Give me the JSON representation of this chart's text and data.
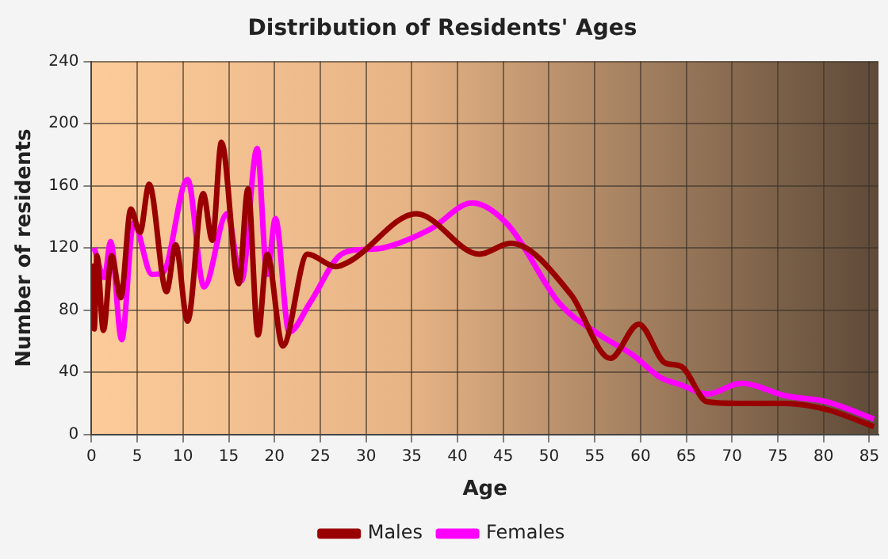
{
  "chart_data": {
    "type": "line",
    "title": "Distribution of Residents' Ages",
    "xlabel": "Age",
    "ylabel": "Number of residents",
    "xlim": [
      0,
      86
    ],
    "xticks": [
      0,
      5,
      10,
      15,
      20,
      25,
      30,
      35,
      40,
      45,
      50,
      55,
      60,
      65,
      70,
      75,
      80,
      85
    ],
    "ylim": [
      0,
      240
    ],
    "yticks": [
      0,
      40,
      80,
      120,
      160,
      200,
      240
    ],
    "grid": true,
    "legend": "bottom",
    "marker": "none",
    "line_style": "solid",
    "series": [
      {
        "name": "Males",
        "color": "#990000",
        "x": [
          0,
          0.3,
          0.6,
          1.3,
          2.2,
          3.2,
          4.3,
          5.3,
          6.3,
          8.2,
          9.2,
          10.5,
          12.2,
          13.2,
          14.2,
          16.1,
          17.1,
          18.2,
          19.2,
          20.9,
          23.6,
          26.7,
          28.4,
          35.5,
          42.4,
          45.8,
          52.4,
          56.7,
          59.8,
          62.7,
          64.4,
          67.3,
          70.7,
          75.8,
          80.4,
          85.5
        ],
        "values": [
          110,
          68,
          115,
          67,
          115,
          88,
          145,
          130,
          161,
          92,
          122,
          73,
          155,
          125,
          188,
          97,
          158,
          64,
          116,
          57,
          116,
          108,
          112,
          142,
          116,
          123,
          90,
          49,
          71,
          46,
          44,
          21,
          20,
          20,
          16,
          5
        ]
      },
      {
        "name": "Females",
        "color": "#ff00ff",
        "x": [
          0.3,
          1.4,
          2.1,
          3.3,
          4.6,
          6.6,
          7.8,
          10.5,
          12.3,
          14.8,
          16.4,
          18.1,
          19.2,
          20.1,
          21.6,
          23.9,
          27.3,
          29.6,
          31.8,
          37,
          41.6,
          45.5,
          51.2,
          55.3,
          59.2,
          62.1,
          64.4,
          67.3,
          71,
          75.8,
          80.4,
          85.5
        ],
        "values": [
          120,
          101,
          124,
          61,
          136,
          103,
          104,
          164,
          95,
          142,
          99,
          184,
          103,
          139,
          66,
          85,
          116,
          119,
          120,
          132,
          149,
          135,
          84,
          65,
          51,
          37,
          32,
          26,
          33,
          25,
          21,
          10
        ]
      }
    ]
  }
}
